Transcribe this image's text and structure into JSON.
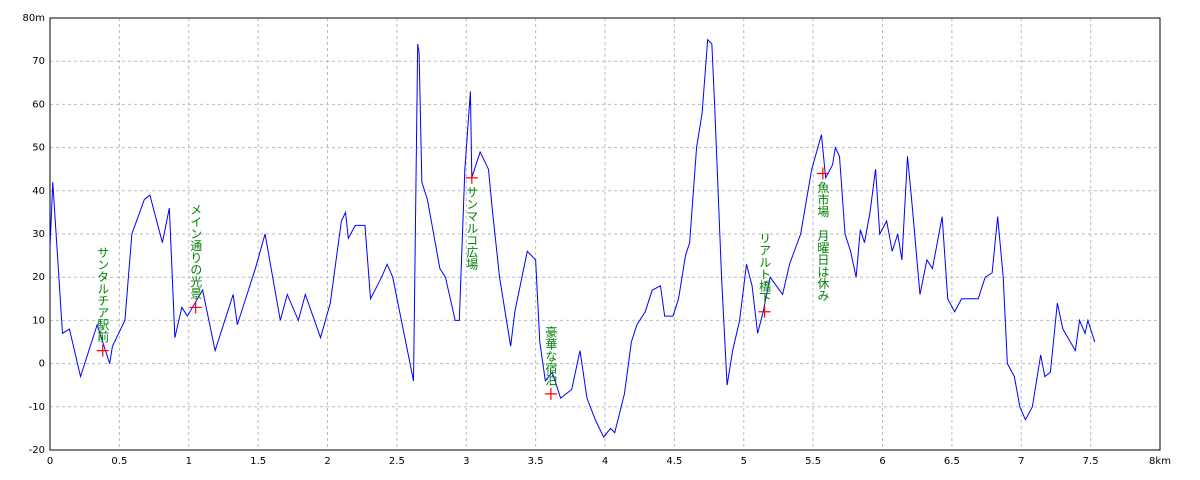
{
  "chart_data": {
    "type": "line",
    "x": [
      0,
      0.02,
      0.09,
      0.14,
      0.22,
      0.34,
      0.43,
      0.45,
      0.54,
      0.59,
      0.68,
      0.72,
      0.81,
      0.86,
      0.9,
      0.95,
      0.99,
      1.1,
      1.19,
      1.32,
      1.35,
      1.48,
      1.55,
      1.66,
      1.71,
      1.79,
      1.84,
      1.95,
      2.02,
      2.1,
      2.13,
      2.15,
      2.2,
      2.27,
      2.31,
      2.39,
      2.43,
      2.47,
      2.62,
      2.65,
      2.66,
      2.68,
      2.72,
      2.81,
      2.85,
      2.92,
      2.95,
      2.99,
      3.03,
      3.04,
      3.1,
      3.16,
      3.19,
      3.24,
      3.32,
      3.35,
      3.44,
      3.5,
      3.53,
      3.57,
      3.62,
      3.68,
      3.76,
      3.82,
      3.87,
      3.93,
      3.99,
      4.04,
      4.07,
      4.14,
      4.19,
      4.23,
      4.29,
      4.34,
      4.4,
      4.43,
      4.49,
      4.53,
      4.58,
      4.61,
      4.66,
      4.7,
      4.74,
      4.77,
      4.79,
      4.84,
      4.88,
      4.92,
      4.97,
      5.02,
      5.06,
      5.1,
      5.14,
      5.19,
      5.28,
      5.33,
      5.41,
      5.49,
      5.56,
      5.59,
      5.64,
      5.66,
      5.69,
      5.73,
      5.77,
      5.81,
      5.84,
      5.87,
      5.91,
      5.95,
      5.98,
      6.03,
      6.07,
      6.11,
      6.14,
      6.18,
      6.21,
      6.27,
      6.32,
      6.36,
      6.43,
      6.47,
      6.52,
      6.57,
      6.69,
      6.74,
      6.79,
      6.83,
      6.87,
      6.9,
      6.95,
      6.99,
      7.03,
      7.08,
      7.14,
      7.17,
      7.21,
      7.26,
      7.3,
      7.39,
      7.42,
      7.46,
      7.48,
      7.53
    ],
    "series": [
      {
        "color": "#0000ff",
        "values": [
          27,
          42,
          7,
          8,
          -3,
          9,
          0,
          4,
          10,
          30,
          38,
          39,
          28,
          36,
          6,
          13,
          11,
          17,
          3,
          16,
          9,
          22,
          30,
          10,
          16,
          10,
          16,
          6,
          14,
          33,
          35,
          29,
          32,
          32,
          15,
          20,
          23,
          20,
          -4,
          74,
          72,
          42,
          38,
          22,
          20,
          10,
          10,
          45,
          63,
          43,
          49,
          45,
          35,
          20,
          4,
          12,
          26,
          24,
          5,
          -4,
          -2,
          -8,
          -6,
          3,
          -8,
          -13,
          -17,
          -15,
          -16,
          -7,
          5,
          9,
          12,
          17,
          18,
          11,
          11,
          15,
          25,
          28,
          50,
          58,
          75,
          74,
          60,
          20,
          -5,
          3,
          10,
          23,
          18,
          7,
          12,
          20,
          16,
          23,
          30,
          45,
          53,
          43,
          46,
          50,
          48,
          30,
          26,
          20,
          31,
          28,
          35,
          45,
          30,
          33,
          26,
          30,
          24,
          48,
          38,
          16,
          24,
          22,
          34,
          15,
          12,
          15,
          15,
          20,
          21,
          34,
          20,
          0,
          -3,
          -10,
          -13,
          -10,
          2,
          -3,
          -2,
          14,
          8,
          3,
          10,
          7,
          10,
          5
        ]
      }
    ],
    "annotations": [
      {
        "x": 0.38,
        "y": 3,
        "text": "サンタルチア駅前"
      },
      {
        "x": 1.05,
        "y": 13,
        "text": "メイン通りの光景"
      },
      {
        "x": 3.04,
        "y": 43,
        "text": "サンマルコ広場"
      },
      {
        "x": 3.61,
        "y": -7,
        "text": "豪華な宿泊"
      },
      {
        "x": 5.15,
        "y": 12,
        "text": "リアルト橋下"
      },
      {
        "x": 5.57,
        "y": 44,
        "text": "魚市場　月曜日は休み"
      }
    ],
    "marker_color": "#ff0000",
    "xlim": [
      0,
      8
    ],
    "ylim": [
      -20,
      80
    ],
    "xticks": [
      0,
      0.5,
      1,
      1.5,
      2,
      2.5,
      3,
      3.5,
      4,
      4.5,
      5,
      5.5,
      6,
      6.5,
      7,
      7.5,
      {
        "value": 8,
        "label": "8km"
      }
    ],
    "yticks": [
      -20,
      -10,
      0,
      10,
      20,
      30,
      40,
      50,
      60,
      70,
      {
        "value": 80,
        "label": "80m"
      }
    ],
    "grid": true
  }
}
